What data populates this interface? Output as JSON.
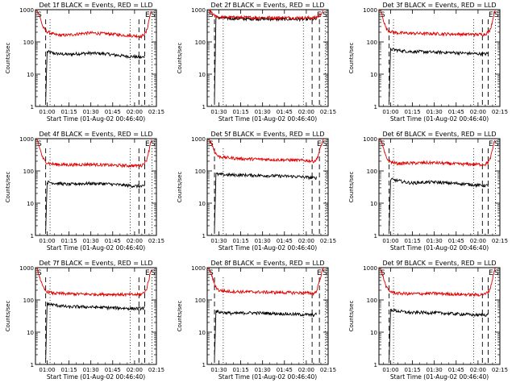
{
  "figure": {
    "colors": {
      "events": "#000000",
      "lld": "#e00000",
      "axis": "#000000",
      "background": "#ffffff"
    }
  },
  "chart_data": [
    {
      "type": "line",
      "title": "Det 1f BLACK = Events, RED = LLD",
      "ylabel": "Counts/sec",
      "xlabel": "Start Time (01-Aug-02 00:46:40)",
      "yscale": "log",
      "ylim": [
        1,
        1000
      ],
      "yticks": [
        "1",
        "10",
        "100",
        "1000"
      ],
      "xticks": [
        "01:00",
        "01:15",
        "01:30",
        "01:45",
        "02:00",
        "02:15"
      ],
      "markers": [
        "S",
        "E",
        "S"
      ],
      "series": [
        {
          "name": "Events",
          "color": "#000000",
          "x": [
            "00:59",
            "01:00",
            "01:05",
            "01:10",
            "01:15",
            "01:20",
            "01:25",
            "01:30",
            "01:35",
            "01:40",
            "01:45",
            "01:50",
            "01:55",
            "02:00",
            "02:05",
            "02:07"
          ],
          "values": [
            1.5,
            50,
            44,
            42,
            41,
            43,
            44,
            45,
            44,
            43,
            40,
            38,
            36,
            35,
            33,
            35
          ]
        },
        {
          "name": "LLD",
          "color": "#e00000",
          "x": [
            "00:53",
            "00:55",
            "00:57",
            "00:59",
            "01:02",
            "01:05",
            "01:10",
            "01:15",
            "01:20",
            "01:25",
            "01:30",
            "01:35",
            "01:40",
            "01:45",
            "01:50",
            "01:55",
            "02:00",
            "02:05",
            "02:08",
            "02:09",
            "02:10",
            "02:11",
            "02:12"
          ],
          "values": [
            1000,
            600,
            300,
            220,
            190,
            170,
            160,
            165,
            175,
            185,
            190,
            185,
            180,
            175,
            165,
            160,
            155,
            150,
            200,
            300,
            500,
            800,
            1000
          ]
        }
      ]
    },
    {
      "type": "line",
      "title": "Det 2f BLACK = Events, RED = LLD",
      "ylabel": "Counts/sec",
      "xlabel": "Start Time (01-Aug-02 00:46:40)",
      "yscale": "log",
      "ylim": [
        1,
        1000
      ],
      "yticks": [
        "1",
        "10",
        "100",
        "1000"
      ],
      "xticks": [
        "01:30",
        "01:15",
        "01:30",
        "01:45",
        "02:00",
        "02:15"
      ],
      "markers": [
        "S",
        "E",
        "S"
      ],
      "series": [
        {
          "name": "Events",
          "color": "#000000",
          "x": [
            "00:57",
            "00:58",
            "01:00",
            "01:05",
            "01:10",
            "01:20",
            "01:30",
            "01:40",
            "01:50",
            "02:00",
            "02:05",
            "02:07"
          ],
          "values": [
            1.5,
            600,
            560,
            540,
            530,
            520,
            515,
            510,
            510,
            505,
            510,
            500
          ]
        },
        {
          "name": "LLD",
          "color": "#e00000",
          "x": [
            "00:53",
            "00:55",
            "00:57",
            "00:59",
            "01:00",
            "01:05",
            "01:15",
            "01:30",
            "01:45",
            "02:00",
            "02:05",
            "02:07",
            "02:09",
            "02:11",
            "02:12"
          ],
          "values": [
            1000,
            800,
            650,
            600,
            590,
            580,
            575,
            570,
            565,
            560,
            560,
            580,
            650,
            850,
            1000
          ]
        }
      ]
    },
    {
      "type": "line",
      "title": "Det 3f BLACK = Events, RED = LLD",
      "ylabel": "Counts/sec",
      "xlabel": "Start Time (01-Aug-02 00:46:40)",
      "yscale": "log",
      "ylim": [
        1,
        1000
      ],
      "yticks": [
        "1",
        "10",
        "100",
        "1000"
      ],
      "xticks": [
        "01:00",
        "01:15",
        "01:30",
        "01:45",
        "02:00",
        "02:15"
      ],
      "markers": [
        "S",
        "E",
        "S"
      ],
      "series": [
        {
          "name": "Events",
          "color": "#000000",
          "x": [
            "00:59",
            "01:00",
            "01:05",
            "01:10",
            "01:15",
            "01:20",
            "01:25",
            "01:30",
            "01:35",
            "01:40",
            "01:45",
            "01:50",
            "01:55",
            "02:00",
            "02:05",
            "02:07"
          ],
          "values": [
            1.5,
            60,
            55,
            52,
            50,
            50,
            49,
            48,
            48,
            47,
            46,
            45,
            44,
            43,
            42,
            44
          ]
        },
        {
          "name": "LLD",
          "color": "#e00000",
          "x": [
            "00:53",
            "00:55",
            "00:57",
            "00:59",
            "01:02",
            "01:05",
            "01:15",
            "01:30",
            "01:45",
            "02:00",
            "02:05",
            "02:08",
            "02:10",
            "02:11",
            "02:12"
          ],
          "values": [
            1000,
            500,
            260,
            220,
            200,
            190,
            185,
            180,
            175,
            170,
            175,
            220,
            450,
            800,
            1000
          ]
        }
      ]
    },
    {
      "type": "line",
      "title": "Det 4f BLACK = Events, RED = LLD",
      "ylabel": "Counts/sec",
      "xlabel": "Start Time (01-Aug-02 00:46:40)",
      "yscale": "log",
      "ylim": [
        1,
        1000
      ],
      "yticks": [
        "1",
        "10",
        "100",
        "1000"
      ],
      "xticks": [
        "01:00",
        "01:15",
        "01:30",
        "01:45",
        "02:00",
        "02:15"
      ],
      "markers": [
        "S",
        "E",
        "S"
      ],
      "series": [
        {
          "name": "Events",
          "color": "#000000",
          "x": [
            "00:59",
            "01:00",
            "01:05",
            "01:10",
            "01:15",
            "01:20",
            "01:30",
            "01:40",
            "01:50",
            "02:00",
            "02:07"
          ],
          "values": [
            1.5,
            45,
            42,
            40,
            38,
            40,
            41,
            40,
            37,
            34,
            33
          ]
        },
        {
          "name": "LLD",
          "color": "#e00000",
          "x": [
            "00:53",
            "00:55",
            "00:57",
            "00:59",
            "01:02",
            "01:05",
            "01:15",
            "01:30",
            "01:45",
            "02:00",
            "02:05",
            "02:08",
            "02:10",
            "02:11",
            "02:12"
          ],
          "values": [
            1000,
            500,
            250,
            190,
            170,
            160,
            155,
            160,
            150,
            145,
            150,
            200,
            450,
            800,
            1000
          ]
        }
      ]
    },
    {
      "type": "line",
      "title": "Det 5f BLACK = Events, RED = LLD",
      "ylabel": "Counts/sec",
      "xlabel": "Start Time (01-Aug-02 00:46:40)",
      "yscale": "log",
      "ylim": [
        1,
        1000
      ],
      "yticks": [
        "1",
        "10",
        "100",
        "1000"
      ],
      "xticks": [
        "01:30",
        "01:15",
        "01:30",
        "01:45",
        "02:00",
        "02:15"
      ],
      "markers": [
        "S",
        "E",
        "S"
      ],
      "series": [
        {
          "name": "Events",
          "color": "#000000",
          "x": [
            "00:57",
            "00:58",
            "01:00",
            "01:05",
            "01:10",
            "01:20",
            "01:30",
            "01:40",
            "01:50",
            "02:00",
            "02:05",
            "02:07"
          ],
          "values": [
            1.5,
            80,
            78,
            76,
            75,
            74,
            72,
            70,
            68,
            64,
            60,
            62
          ]
        },
        {
          "name": "LLD",
          "color": "#e00000",
          "x": [
            "00:53",
            "00:55",
            "00:57",
            "00:59",
            "01:00",
            "01:05",
            "01:15",
            "01:30",
            "01:45",
            "02:00",
            "02:05",
            "02:07",
            "02:09",
            "02:11",
            "02:12"
          ],
          "values": [
            1000,
            700,
            400,
            300,
            280,
            260,
            240,
            230,
            220,
            210,
            200,
            220,
            400,
            800,
            1000
          ]
        }
      ]
    },
    {
      "type": "line",
      "title": "Det 6f BLACK = Events, RED = LLD",
      "ylabel": "Counts/sec",
      "xlabel": "Start Time (01-Aug-02 00:46:40)",
      "yscale": "log",
      "ylim": [
        1,
        1000
      ],
      "yticks": [
        "1",
        "10",
        "100",
        "1000"
      ],
      "xticks": [
        "01:00",
        "01:15",
        "01:30",
        "01:45",
        "02:00",
        "02:15"
      ],
      "markers": [
        "S",
        "E",
        "S"
      ],
      "series": [
        {
          "name": "Events",
          "color": "#000000",
          "x": [
            "00:59",
            "01:00",
            "01:05",
            "01:10",
            "01:15",
            "01:20",
            "01:30",
            "01:40",
            "01:50",
            "02:00",
            "02:07"
          ],
          "values": [
            1.5,
            55,
            50,
            45,
            42,
            44,
            45,
            42,
            40,
            36,
            35
          ]
        },
        {
          "name": "LLD",
          "color": "#e00000",
          "x": [
            "00:53",
            "00:55",
            "00:57",
            "00:59",
            "01:02",
            "01:05",
            "01:15",
            "01:30",
            "01:45",
            "02:00",
            "02:05",
            "02:08",
            "02:10",
            "02:11",
            "02:12"
          ],
          "values": [
            1000,
            500,
            260,
            200,
            180,
            170,
            175,
            180,
            165,
            160,
            160,
            210,
            450,
            800,
            1000
          ]
        }
      ]
    },
    {
      "type": "line",
      "title": "Det 7f BLACK = Events, RED = LLD",
      "ylabel": "Counts/sec",
      "xlabel": "Start Time (01-Aug-02 00:46:40)",
      "yscale": "log",
      "ylim": [
        1,
        1000
      ],
      "yticks": [
        "1",
        "10",
        "100",
        "1000"
      ],
      "xticks": [
        "01:00",
        "01:15",
        "01:30",
        "01:45",
        "02:00",
        "02:15"
      ],
      "markers": [
        "S",
        "E",
        "S"
      ],
      "series": [
        {
          "name": "Events",
          "color": "#000000",
          "x": [
            "00:59",
            "01:00",
            "01:05",
            "01:10",
            "01:15",
            "01:20",
            "01:30",
            "01:40",
            "01:50",
            "02:00",
            "02:07"
          ],
          "values": [
            1.5,
            75,
            70,
            65,
            60,
            62,
            60,
            58,
            56,
            54,
            55
          ]
        },
        {
          "name": "LLD",
          "color": "#e00000",
          "x": [
            "00:53",
            "00:55",
            "00:57",
            "00:59",
            "01:02",
            "01:05",
            "01:15",
            "01:30",
            "01:45",
            "02:00",
            "02:05",
            "02:08",
            "02:10",
            "02:11",
            "02:12"
          ],
          "values": [
            1000,
            500,
            250,
            190,
            170,
            160,
            155,
            150,
            150,
            145,
            150,
            200,
            450,
            800,
            1000
          ]
        }
      ]
    },
    {
      "type": "line",
      "title": "Det 8f BLACK = Events, RED = LLD",
      "ylabel": "Counts/sec",
      "xlabel": "Start Time (01-Aug-02 00:46:40)",
      "yscale": "log",
      "ylim": [
        1,
        1000
      ],
      "yticks": [
        "1",
        "10",
        "100",
        "1000"
      ],
      "xticks": [
        "01:30",
        "01:15",
        "01:30",
        "01:45",
        "02:00",
        "02:15"
      ],
      "markers": [
        "S",
        "E",
        "S"
      ],
      "series": [
        {
          "name": "Events",
          "color": "#000000",
          "x": [
            "00:57",
            "00:58",
            "01:00",
            "01:05",
            "01:10",
            "01:20",
            "01:30",
            "01:40",
            "01:50",
            "02:00",
            "02:05",
            "02:07"
          ],
          "values": [
            1.5,
            45,
            42,
            40,
            38,
            40,
            39,
            38,
            36,
            35,
            34,
            36
          ]
        },
        {
          "name": "LLD",
          "color": "#e00000",
          "x": [
            "00:53",
            "00:55",
            "00:57",
            "00:59",
            "01:00",
            "01:05",
            "01:15",
            "01:30",
            "01:45",
            "02:00",
            "02:05",
            "02:07",
            "02:09",
            "02:11",
            "02:12"
          ],
          "values": [
            1000,
            600,
            300,
            220,
            200,
            185,
            180,
            175,
            170,
            165,
            160,
            180,
            400,
            800,
            1000
          ]
        }
      ]
    },
    {
      "type": "line",
      "title": "Det 9f BLACK = Events, RED = LLD",
      "ylabel": "Counts/sec",
      "xlabel": "Start Time (01-Aug-02 00:46:40)",
      "yscale": "log",
      "ylim": [
        1,
        1000
      ],
      "yticks": [
        "1",
        "10",
        "100",
        "1000"
      ],
      "xticks": [
        "01:00",
        "01:15",
        "01:30",
        "01:45",
        "02:00",
        "02:15"
      ],
      "markers": [
        "S",
        "E",
        "S"
      ],
      "series": [
        {
          "name": "Events",
          "color": "#000000",
          "x": [
            "00:59",
            "01:00",
            "01:05",
            "01:10",
            "01:15",
            "01:20",
            "01:30",
            "01:40",
            "01:50",
            "02:00",
            "02:07"
          ],
          "values": [
            1.5,
            50,
            45,
            42,
            40,
            41,
            40,
            38,
            36,
            34,
            35
          ]
        },
        {
          "name": "LLD",
          "color": "#e00000",
          "x": [
            "00:53",
            "00:55",
            "00:57",
            "00:59",
            "01:02",
            "01:05",
            "01:15",
            "01:30",
            "01:45",
            "02:00",
            "02:05",
            "02:08",
            "02:10",
            "02:11",
            "02:12"
          ],
          "values": [
            1000,
            500,
            250,
            190,
            170,
            160,
            155,
            160,
            150,
            145,
            150,
            200,
            450,
            800,
            1000
          ]
        }
      ]
    }
  ]
}
